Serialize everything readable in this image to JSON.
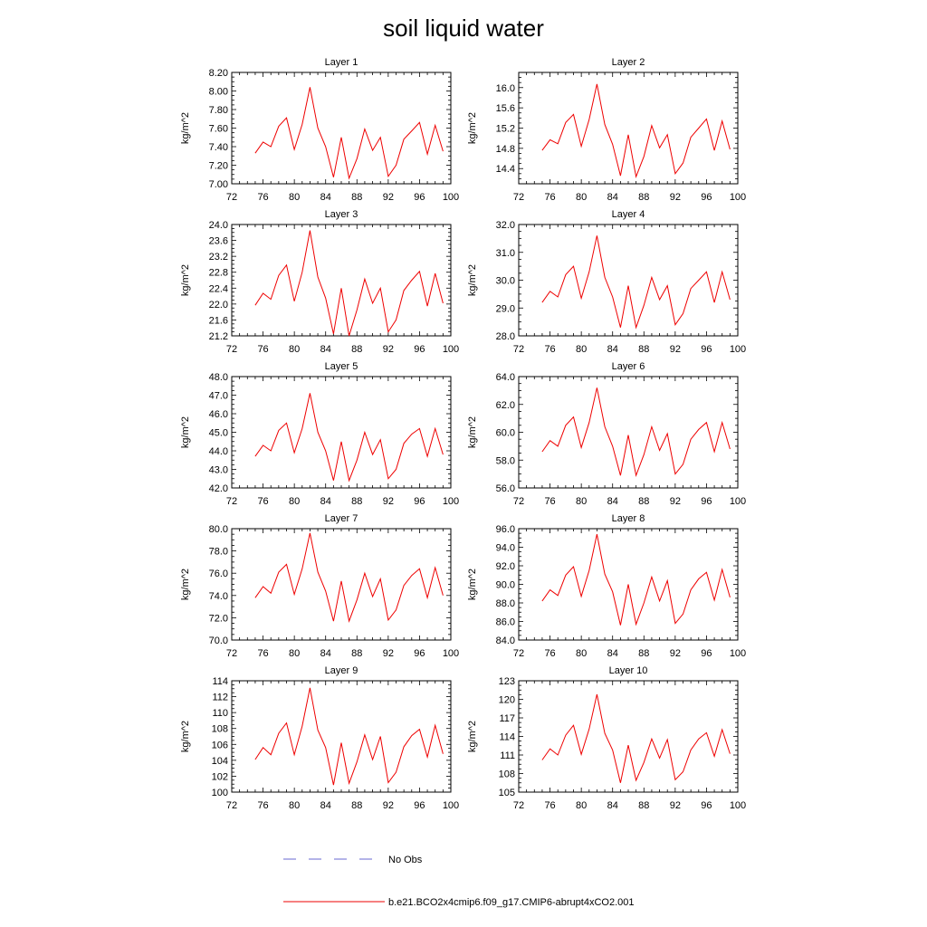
{
  "title": "soil liquid water",
  "legend": {
    "obs_label": "No Obs",
    "obs_color": "#6a6ad0",
    "model_label": "b.e21.BCO2x4cmip6.f09_g17.CMIP6-abrupt4xCO2.001",
    "model_color": "#ee0000"
  },
  "chart_data": [
    {
      "type": "line",
      "title": "Layer 1",
      "ylabel": "kg/m^2",
      "xlim": [
        72,
        100
      ],
      "ylim": [
        7.0,
        8.2
      ],
      "xticks": [
        "72",
        "76",
        "80",
        "84",
        "88",
        "92",
        "96",
        "100"
      ],
      "yticks": [
        "7.00",
        "7.20",
        "7.40",
        "7.60",
        "7.80",
        "8.00",
        "8.20"
      ],
      "ytick_values": [
        7.0,
        7.2,
        7.4,
        7.6,
        7.8,
        8.0,
        8.2
      ],
      "x": [
        75,
        76,
        77,
        78,
        79,
        80,
        81,
        82,
        83,
        84,
        85,
        86,
        87,
        88,
        89,
        90,
        91,
        92,
        93,
        94,
        95,
        96,
        97,
        98,
        99
      ],
      "series": [
        {
          "values": [
            7.33,
            7.45,
            7.4,
            7.62,
            7.71,
            7.37,
            7.64,
            8.04,
            7.6,
            7.4,
            7.07,
            7.5,
            7.06,
            7.27,
            7.59,
            7.36,
            7.5,
            7.08,
            7.2,
            7.48,
            7.57,
            7.66,
            7.32,
            7.63,
            7.35
          ]
        }
      ]
    },
    {
      "type": "line",
      "title": "Layer 2",
      "ylabel": "kg/m^2",
      "xlim": [
        72,
        100
      ],
      "ylim": [
        14.1,
        16.3
      ],
      "xticks": [
        "72",
        "76",
        "80",
        "84",
        "88",
        "92",
        "96",
        "100"
      ],
      "yticks": [
        "14.4",
        "14.8",
        "15.2",
        "15.6",
        "16.0"
      ],
      "ytick_values": [
        14.4,
        14.8,
        15.2,
        15.6,
        16.0
      ],
      "x": [
        75,
        76,
        77,
        78,
        79,
        80,
        81,
        82,
        83,
        84,
        85,
        86,
        87,
        88,
        89,
        90,
        91,
        92,
        93,
        94,
        95,
        96,
        97,
        98,
        99
      ],
      "series": [
        {
          "values": [
            14.76,
            14.97,
            14.89,
            15.31,
            15.47,
            14.84,
            15.37,
            16.07,
            15.27,
            14.88,
            14.26,
            15.07,
            14.24,
            14.64,
            15.25,
            14.81,
            15.07,
            14.3,
            14.51,
            15.02,
            15.2,
            15.38,
            14.76,
            15.34,
            14.78
          ]
        }
      ]
    },
    {
      "type": "line",
      "title": "Layer 3",
      "ylabel": "kg/m^2",
      "xlim": [
        72,
        100
      ],
      "ylim": [
        21.2,
        24.0
      ],
      "xticks": [
        "72",
        "76",
        "80",
        "84",
        "88",
        "92",
        "96",
        "100"
      ],
      "yticks": [
        "21.2",
        "21.6",
        "22.0",
        "22.4",
        "22.8",
        "23.2",
        "23.6",
        "24.0"
      ],
      "ytick_values": [
        21.2,
        21.6,
        22.0,
        22.4,
        22.8,
        23.2,
        23.6,
        24.0
      ],
      "x": [
        75,
        76,
        77,
        78,
        79,
        80,
        81,
        82,
        83,
        84,
        85,
        86,
        87,
        88,
        89,
        90,
        91,
        92,
        93,
        94,
        95,
        96,
        97,
        98,
        99
      ],
      "series": [
        {
          "values": [
            21.97,
            22.27,
            22.12,
            22.72,
            22.98,
            22.07,
            22.8,
            23.85,
            22.68,
            22.15,
            21.25,
            22.4,
            21.2,
            21.85,
            22.63,
            22.02,
            22.4,
            21.3,
            21.6,
            22.34,
            22.6,
            22.82,
            21.95,
            22.77,
            22.02
          ]
        }
      ]
    },
    {
      "type": "line",
      "title": "Layer 4",
      "ylabel": "kg/m^2",
      "xlim": [
        72,
        100
      ],
      "ylim": [
        28.0,
        32.0
      ],
      "xticks": [
        "72",
        "76",
        "80",
        "84",
        "88",
        "92",
        "96",
        "100"
      ],
      "yticks": [
        "28.0",
        "29.0",
        "30.0",
        "31.0",
        "32.0"
      ],
      "ytick_values": [
        28.0,
        29.0,
        30.0,
        31.0,
        32.0
      ],
      "x": [
        75,
        76,
        77,
        78,
        79,
        80,
        81,
        82,
        83,
        84,
        85,
        86,
        87,
        88,
        89,
        90,
        91,
        92,
        93,
        94,
        95,
        96,
        97,
        98,
        99
      ],
      "series": [
        {
          "values": [
            29.2,
            29.6,
            29.4,
            30.2,
            30.5,
            29.35,
            30.3,
            31.6,
            30.1,
            29.4,
            28.3,
            29.8,
            28.3,
            29.1,
            30.1,
            29.3,
            29.8,
            28.4,
            28.8,
            29.7,
            30.0,
            30.3,
            29.2,
            30.3,
            29.3
          ]
        }
      ]
    },
    {
      "type": "line",
      "title": "Layer 5",
      "ylabel": "kg/m^2",
      "xlim": [
        72,
        100
      ],
      "ylim": [
        42.0,
        48.0
      ],
      "xticks": [
        "72",
        "76",
        "80",
        "84",
        "88",
        "92",
        "96",
        "100"
      ],
      "yticks": [
        "42.0",
        "43.0",
        "44.0",
        "45.0",
        "46.0",
        "47.0",
        "48.0"
      ],
      "ytick_values": [
        42.0,
        43.0,
        44.0,
        45.0,
        46.0,
        47.0,
        48.0
      ],
      "x": [
        75,
        76,
        77,
        78,
        79,
        80,
        81,
        82,
        83,
        84,
        85,
        86,
        87,
        88,
        89,
        90,
        91,
        92,
        93,
        94,
        95,
        96,
        97,
        98,
        99
      ],
      "series": [
        {
          "values": [
            43.7,
            44.3,
            44.0,
            45.1,
            45.5,
            43.9,
            45.2,
            47.1,
            45.0,
            44.0,
            42.4,
            44.5,
            42.4,
            43.5,
            45.0,
            43.8,
            44.6,
            42.5,
            43.0,
            44.4,
            44.9,
            45.2,
            43.7,
            45.2,
            43.8
          ]
        }
      ]
    },
    {
      "type": "line",
      "title": "Layer 6",
      "ylabel": "kg/m^2",
      "xlim": [
        72,
        100
      ],
      "ylim": [
        56.0,
        64.0
      ],
      "xticks": [
        "72",
        "76",
        "80",
        "84",
        "88",
        "92",
        "96",
        "100"
      ],
      "yticks": [
        "56.0",
        "58.0",
        "60.0",
        "62.0",
        "64.0"
      ],
      "ytick_values": [
        56.0,
        58.0,
        60.0,
        62.0,
        64.0
      ],
      "x": [
        75,
        76,
        77,
        78,
        79,
        80,
        81,
        82,
        83,
        84,
        85,
        86,
        87,
        88,
        89,
        90,
        91,
        92,
        93,
        94,
        95,
        96,
        97,
        98,
        99
      ],
      "series": [
        {
          "values": [
            58.6,
            59.4,
            59.0,
            60.5,
            61.1,
            58.9,
            60.7,
            63.2,
            60.4,
            59.0,
            56.9,
            59.8,
            56.9,
            58.4,
            60.4,
            58.7,
            59.9,
            57.0,
            57.7,
            59.5,
            60.2,
            60.7,
            58.6,
            60.7,
            58.8
          ]
        }
      ]
    },
    {
      "type": "line",
      "title": "Layer 7",
      "ylabel": "kg/m^2",
      "xlim": [
        72,
        100
      ],
      "ylim": [
        70.0,
        80.0
      ],
      "xticks": [
        "72",
        "76",
        "80",
        "84",
        "88",
        "92",
        "96",
        "100"
      ],
      "yticks": [
        "70.0",
        "72.0",
        "74.0",
        "76.0",
        "78.0",
        "80.0"
      ],
      "ytick_values": [
        70.0,
        72.0,
        74.0,
        76.0,
        78.0,
        80.0
      ],
      "x": [
        75,
        76,
        77,
        78,
        79,
        80,
        81,
        82,
        83,
        84,
        85,
        86,
        87,
        88,
        89,
        90,
        91,
        92,
        93,
        94,
        95,
        96,
        97,
        98,
        99
      ],
      "series": [
        {
          "values": [
            73.8,
            74.8,
            74.2,
            76.1,
            76.8,
            74.1,
            76.4,
            79.6,
            76.1,
            74.4,
            71.7,
            75.3,
            71.7,
            73.6,
            76.0,
            73.9,
            75.5,
            71.8,
            72.7,
            74.9,
            75.8,
            76.4,
            73.8,
            76.5,
            74.0
          ]
        }
      ]
    },
    {
      "type": "line",
      "title": "Layer 8",
      "ylabel": "kg/m^2",
      "xlim": [
        72,
        100
      ],
      "ylim": [
        84.0,
        96.0
      ],
      "xticks": [
        "72",
        "76",
        "80",
        "84",
        "88",
        "92",
        "96",
        "100"
      ],
      "yticks": [
        "84.0",
        "86.0",
        "88.0",
        "90.0",
        "92.0",
        "94.0",
        "96.0"
      ],
      "ytick_values": [
        84.0,
        86.0,
        88.0,
        90.0,
        92.0,
        94.0,
        96.0
      ],
      "x": [
        75,
        76,
        77,
        78,
        79,
        80,
        81,
        82,
        83,
        84,
        85,
        86,
        87,
        88,
        89,
        90,
        91,
        92,
        93,
        94,
        95,
        96,
        97,
        98,
        99
      ],
      "series": [
        {
          "values": [
            88.2,
            89.4,
            88.8,
            91.0,
            91.9,
            88.7,
            91.5,
            95.4,
            91.1,
            89.2,
            85.6,
            90.0,
            85.7,
            88.0,
            90.8,
            88.2,
            90.4,
            85.8,
            86.8,
            89.4,
            90.6,
            91.3,
            88.3,
            91.6,
            88.6
          ]
        }
      ]
    },
    {
      "type": "line",
      "title": "Layer 9",
      "ylabel": "kg/m^2",
      "xlim": [
        72,
        100
      ],
      "ylim": [
        100,
        114
      ],
      "xticks": [
        "72",
        "76",
        "80",
        "84",
        "88",
        "92",
        "96",
        "100"
      ],
      "yticks": [
        "100",
        "102",
        "104",
        "106",
        "108",
        "110",
        "112",
        "114"
      ],
      "ytick_values": [
        100,
        102,
        104,
        106,
        108,
        110,
        112,
        114
      ],
      "x": [
        75,
        76,
        77,
        78,
        79,
        80,
        81,
        82,
        83,
        84,
        85,
        86,
        87,
        88,
        89,
        90,
        91,
        92,
        93,
        94,
        95,
        96,
        97,
        98,
        99
      ],
      "series": [
        {
          "values": [
            104.1,
            105.6,
            104.7,
            107.4,
            108.7,
            104.7,
            108.3,
            113.1,
            107.8,
            105.6,
            100.9,
            106.2,
            101.1,
            103.8,
            107.2,
            104.1,
            107.0,
            101.2,
            102.5,
            105.7,
            107.1,
            107.9,
            104.4,
            108.4,
            104.8
          ]
        }
      ]
    },
    {
      "type": "line",
      "title": "Layer 10",
      "ylabel": "kg/m^2",
      "xlim": [
        72,
        100
      ],
      "ylim": [
        105,
        123
      ],
      "xticks": [
        "72",
        "76",
        "80",
        "84",
        "88",
        "92",
        "96",
        "100"
      ],
      "yticks": [
        "105",
        "108",
        "111",
        "114",
        "117",
        "120",
        "123"
      ],
      "ytick_values": [
        105,
        108,
        111,
        114,
        117,
        120,
        123
      ],
      "x": [
        75,
        76,
        77,
        78,
        79,
        80,
        81,
        82,
        83,
        84,
        85,
        86,
        87,
        88,
        89,
        90,
        91,
        92,
        93,
        94,
        95,
        96,
        97,
        98,
        99
      ],
      "series": [
        {
          "values": [
            110.2,
            112.0,
            111.0,
            114.2,
            115.8,
            111.1,
            115.2,
            120.8,
            114.5,
            111.8,
            106.5,
            112.6,
            106.9,
            109.8,
            113.6,
            110.5,
            113.5,
            107.0,
            108.3,
            111.8,
            113.6,
            114.6,
            110.8,
            115.1,
            111.2
          ]
        }
      ]
    }
  ]
}
